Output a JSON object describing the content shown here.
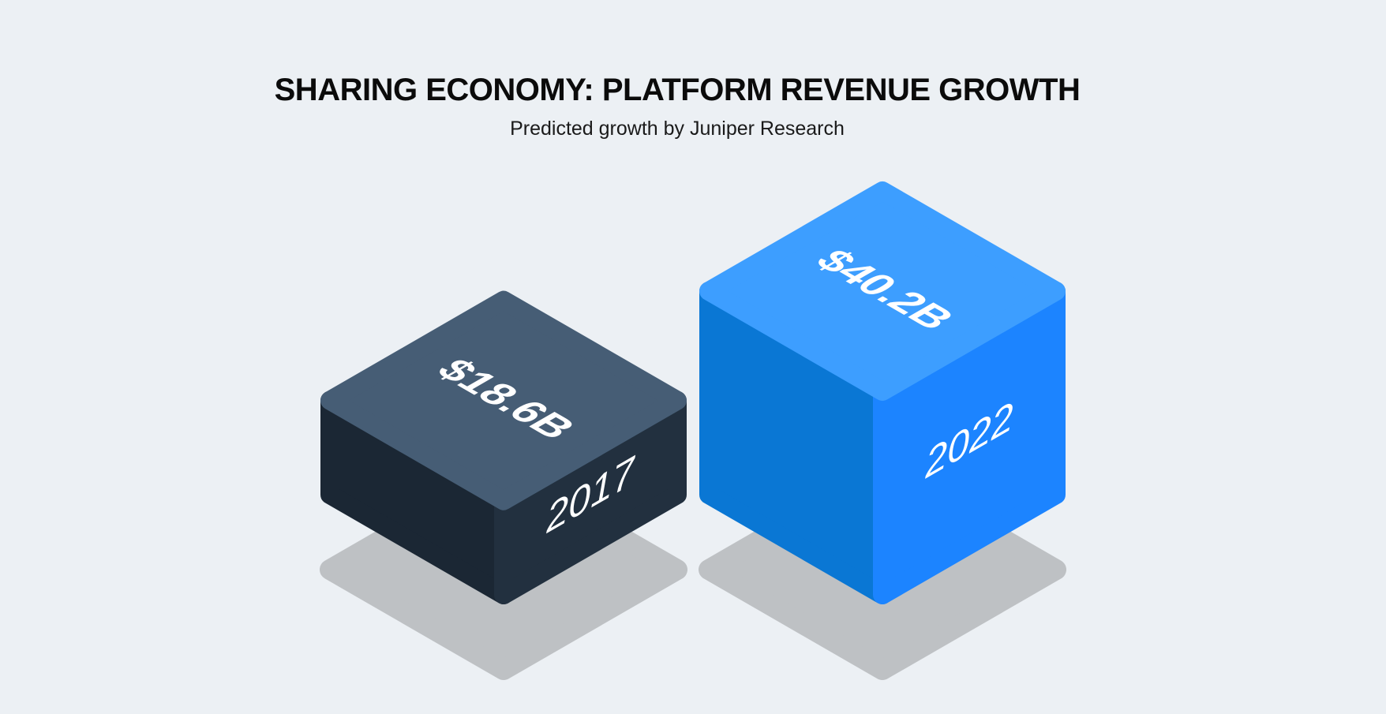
{
  "chart_data": {
    "type": "bar",
    "title": "SHARING ECONOMY: PLATFORM REVENUE GROWTH",
    "subtitle": "Predicted growth by Juniper Research",
    "categories": [
      "2017",
      "2022"
    ],
    "values": [
      18.6,
      40.2
    ],
    "value_labels": [
      "$18.6B",
      "$40.2B"
    ],
    "unit": "$B",
    "colors": {
      "background": "#ECF0F4",
      "shadow": "#BEC1C4",
      "bars": [
        {
          "top": "#465D75",
          "left": "#1B2734",
          "right": "#22303F"
        },
        {
          "top": "#3D9EFF",
          "left": "#0A77D4",
          "right": "#1C84FF"
        }
      ]
    }
  }
}
